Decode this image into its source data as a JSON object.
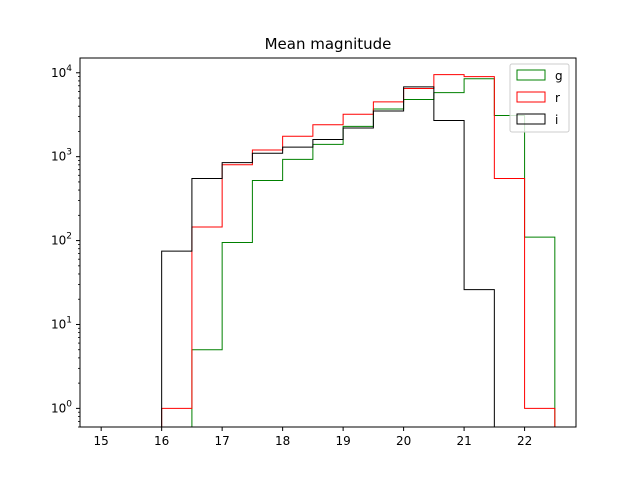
{
  "chart_data": {
    "type": "histogram",
    "title": "Mean magnitude",
    "xlabel": "",
    "ylabel": "",
    "xlim": [
      14.65,
      22.85
    ],
    "ylim": [
      0.6,
      15000
    ],
    "yscale": "log",
    "x_ticks": [
      "15",
      "16",
      "17",
      "18",
      "19",
      "20",
      "21",
      "22"
    ],
    "y_ticks": [
      {
        "base": "10",
        "exp": "0"
      },
      {
        "base": "10",
        "exp": "1"
      },
      {
        "base": "10",
        "exp": "2"
      },
      {
        "base": "10",
        "exp": "3"
      },
      {
        "base": "10",
        "exp": "4"
      }
    ],
    "bin_edges": [
      15.0,
      15.5,
      16.0,
      16.5,
      17.0,
      17.5,
      18.0,
      18.5,
      19.0,
      19.5,
      20.0,
      20.5,
      21.0,
      21.5,
      22.0,
      22.5
    ],
    "legend_position": "top-right",
    "series": [
      {
        "name": "g",
        "color": "#008000",
        "values": [
          0,
          0,
          0,
          5,
          95,
          520,
          930,
          1400,
          2300,
          3700,
          4800,
          5800,
          8500,
          3100,
          110
        ]
      },
      {
        "name": "r",
        "color": "#ff0000",
        "values": [
          0,
          0,
          1,
          145,
          800,
          1200,
          1750,
          2400,
          3200,
          4500,
          6500,
          9500,
          9000,
          550,
          1
        ]
      },
      {
        "name": "i",
        "color": "#000000",
        "values": [
          0,
          0,
          75,
          550,
          850,
          1100,
          1300,
          1600,
          2200,
          3500,
          6800,
          2700,
          26,
          0,
          0
        ]
      }
    ]
  }
}
